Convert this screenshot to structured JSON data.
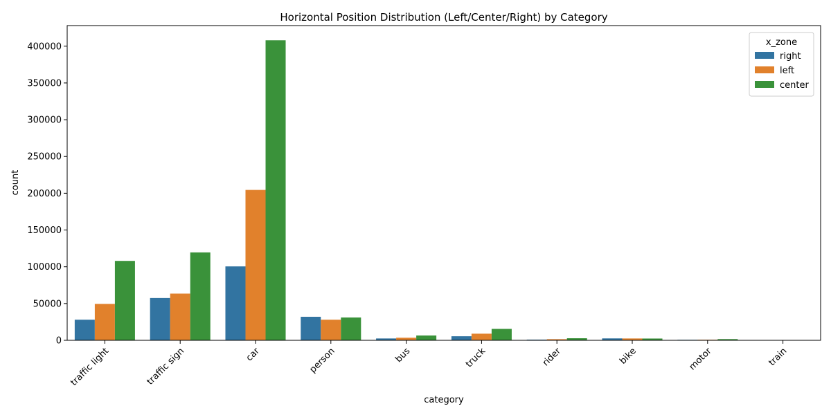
{
  "chart_data": {
    "type": "bar",
    "title": "Horizontal Position Distribution (Left/Center/Right) by Category",
    "xlabel": "category",
    "ylabel": "count",
    "categories": [
      "traffic light",
      "traffic sign",
      "car",
      "person",
      "bus",
      "truck",
      "rider",
      "bike",
      "motor",
      "train"
    ],
    "series": [
      {
        "name": "right",
        "color": "#3274a1",
        "values": [
          28000,
          57500,
          100500,
          32000,
          2500,
          5500,
          900,
          2600,
          700,
          50
        ]
      },
      {
        "name": "left",
        "color": "#e1812c",
        "values": [
          49500,
          63500,
          204500,
          28000,
          3500,
          9000,
          1500,
          2500,
          800,
          60
        ]
      },
      {
        "name": "center",
        "color": "#3a923a",
        "values": [
          108000,
          119500,
          408000,
          31000,
          6500,
          15500,
          2800,
          2400,
          1600,
          70
        ]
      }
    ],
    "ylim": [
      0,
      428000
    ],
    "yticks": [
      0,
      50000,
      100000,
      150000,
      200000,
      250000,
      300000,
      350000,
      400000
    ],
    "legend": {
      "title": "x_zone",
      "position": "top-right"
    },
    "grid": false
  }
}
